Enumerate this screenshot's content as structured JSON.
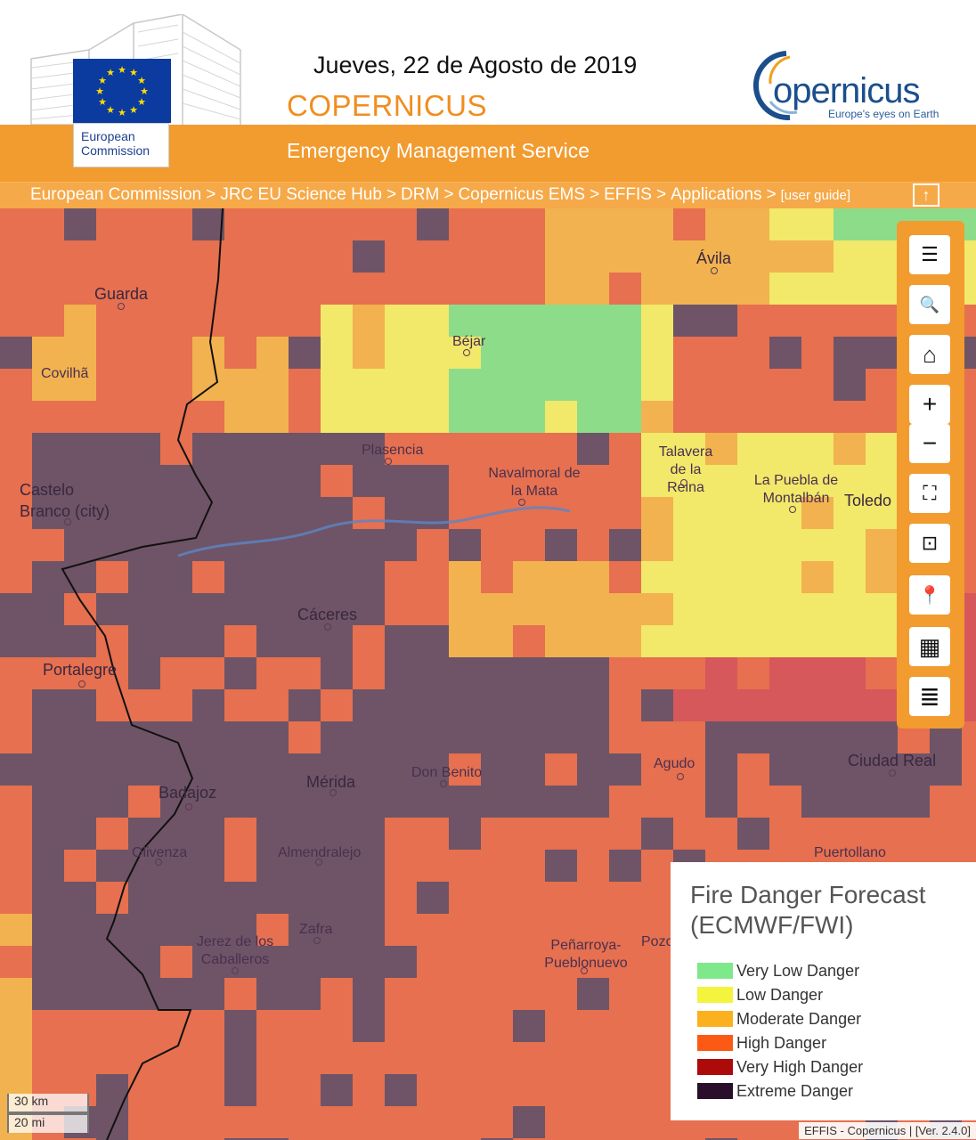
{
  "header": {
    "date": "Jueves, 22 de Agosto de 2019",
    "brand": "COPERNICUS",
    "ec_logo_text": [
      "European",
      "Commission"
    ],
    "copernicus_logo_text": "opernicus",
    "copernicus_tagline": "Europe's eyes on Earth",
    "service": "Emergency Management Service"
  },
  "breadcrumb": {
    "items": [
      "European Commission",
      "JRC EU Science Hub",
      "DRM",
      "Copernicus EMS",
      "EFFIS",
      "Applications"
    ],
    "separator": ">",
    "guide": "[user guide]",
    "up_icon": "arrow-up-icon"
  },
  "toolbar": {
    "buttons": [
      {
        "name": "menu-icon",
        "glyph": "☰"
      },
      {
        "name": "search-icon",
        "glyph": "🔍"
      },
      {
        "name": "home-icon",
        "glyph": "⌂"
      },
      {
        "name": "zoom-in-icon",
        "glyph": "+"
      },
      {
        "name": "zoom-out-icon",
        "glyph": "−"
      },
      {
        "name": "fullscreen-icon",
        "glyph": "⛶"
      },
      {
        "name": "zoom-extent-icon",
        "glyph": "⊡"
      },
      {
        "name": "locate-icon",
        "glyph": "📍"
      },
      {
        "name": "layers-icon",
        "glyph": "▦"
      },
      {
        "name": "list-icon",
        "glyph": "≣"
      }
    ]
  },
  "map": {
    "places": [
      "Ávila",
      "Guarda",
      "Béjar",
      "Covilhã",
      "Plasencia",
      "Talavera de la Reina",
      "Navalmoral de la Mata",
      "Castelo Branco (city)",
      "La Puebla de Montalbán",
      "Toledo",
      "Cáceres",
      "Portalegre",
      "Agudo",
      "Ciudad Real",
      "Don Benito",
      "Mérida",
      "Badajoz",
      "Olivenza",
      "Almendralejo",
      "Puertollano",
      "Zafra",
      "Jerez de los Caballeros",
      "Peñarroya-Pueblonuevo",
      "Pozo"
    ]
  },
  "legend": {
    "title": "Fire Danger Forecast (ECMWF/FWI)",
    "items": [
      {
        "label": "Very Low Danger",
        "color": "#7ee88a"
      },
      {
        "label": "Low Danger",
        "color": "#f4f43e"
      },
      {
        "label": "Moderate Danger",
        "color": "#fbb11e"
      },
      {
        "label": "High Danger",
        "color": "#fc5a14"
      },
      {
        "label": "Very High Danger",
        "color": "#ad0a0a"
      },
      {
        "label": "Extreme Danger",
        "color": "#2a0f2a"
      }
    ]
  },
  "scale": {
    "km": "30 km",
    "mi": "20 mi"
  },
  "attribution": "EFFIS - Copernicus | [Ver. 2.4.0]"
}
